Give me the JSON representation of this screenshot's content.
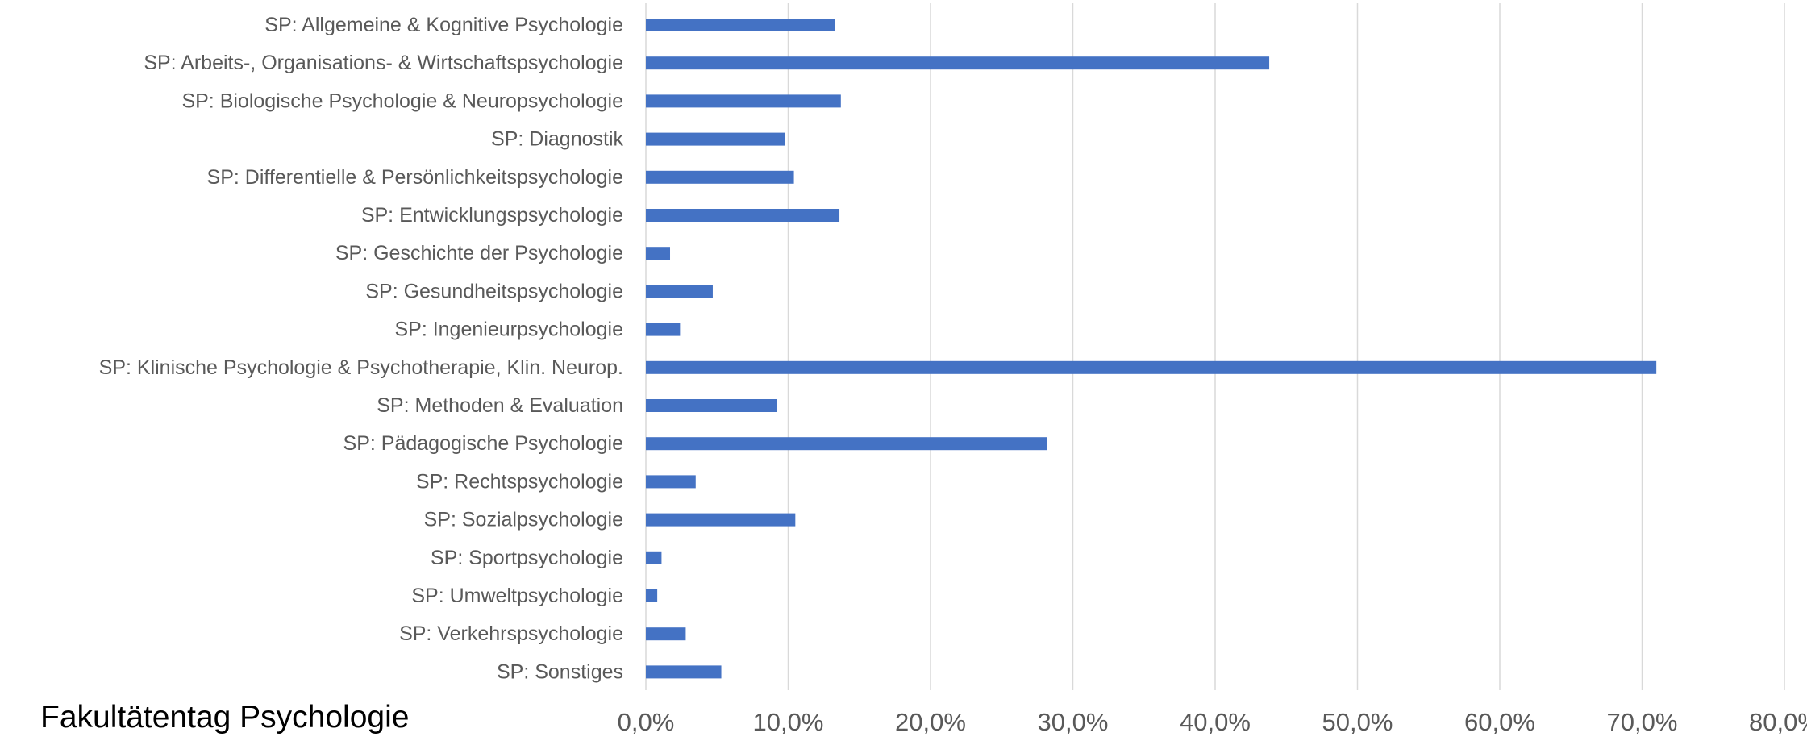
{
  "footer": {
    "caption": "Fakultätentag Psychologie"
  },
  "colors": {
    "bar": "#4472C4",
    "grid": "#D9D9D9",
    "label": "#595959"
  },
  "chart_data": {
    "type": "bar",
    "orientation": "horizontal",
    "title": "",
    "xlabel": "",
    "ylabel": "",
    "xlim": [
      0,
      80
    ],
    "x_ticks": [
      "0,0%",
      "10,0%",
      "20,0%",
      "30,0%",
      "40,0%",
      "50,0%",
      "60,0%",
      "70,0%",
      "80,0%"
    ],
    "grid": "vertical",
    "legend": "none",
    "categories": [
      "SP: Allgemeine & Kognitive Psychologie",
      "SP: Arbeits-, Organisations- & Wirtschaftspsychologie",
      "SP: Biologische Psychologie &  Neuropsychologie",
      "SP: Diagnostik",
      "SP: Differentielle &  Persönlichkeitspsychologie",
      "SP: Entwicklungspsychologie",
      "SP: Geschichte der Psychologie",
      "SP: Gesundheitspsychologie",
      "SP: Ingenieurpsychologie",
      "SP: Klinische Psychologie & Psychotherapie, Klin. Neurop.",
      "SP: Methoden & Evaluation",
      "SP: Pädagogische Psychologie",
      "SP: Rechtspsychologie",
      "SP: Sozialpsychologie",
      "SP: Sportpsychologie",
      "SP: Umweltpsychologie",
      "SP: Verkehrspsychologie",
      "SP: Sonstiges"
    ],
    "values": [
      13.3,
      43.8,
      13.7,
      9.8,
      10.4,
      13.6,
      1.7,
      4.7,
      2.4,
      71.0,
      9.2,
      28.2,
      3.5,
      10.5,
      1.1,
      0.8,
      2.8,
      5.3
    ]
  }
}
